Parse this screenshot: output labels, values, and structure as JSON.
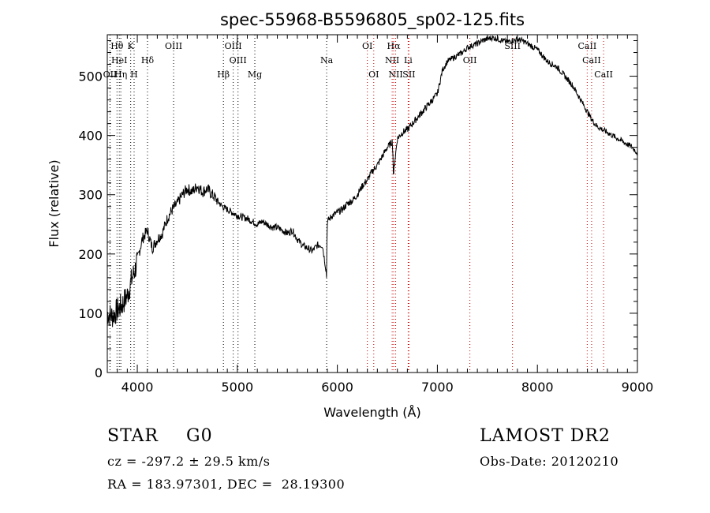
{
  "chart_data": {
    "type": "line",
    "title": "spec-55968-B5596805_sp02-125.fits",
    "xlabel": "Wavelength (Å)",
    "ylabel": "Flux (relative)",
    "xlim": [
      3700,
      9000
    ],
    "ylim": [
      0,
      570
    ],
    "x_ticks": [
      4000,
      5000,
      6000,
      7000,
      8000,
      9000
    ],
    "y_ticks": [
      0,
      100,
      200,
      300,
      400,
      500
    ],
    "x_tick_labels": [
      "4000",
      "5000",
      "6000",
      "7000",
      "8000",
      "9000"
    ],
    "y_tick_labels": [
      "0",
      "100",
      "200",
      "300",
      "400",
      "500"
    ],
    "series": [
      {
        "x": [
          3700,
          3750,
          3800,
          3850,
          3900,
          3950,
          3980,
          4000,
          4050,
          4100,
          4150,
          4200,
          4250,
          4300,
          4350,
          4400,
          4450,
          4500,
          4550,
          4600,
          4650,
          4700,
          4750,
          4800,
          4850,
          4900,
          4950,
          5000,
          5050,
          5100,
          5150,
          5200,
          5250,
          5300,
          5350,
          5400,
          5450,
          5500,
          5550,
          5600,
          5650,
          5700,
          5750,
          5800,
          5850,
          5890,
          5900,
          5950,
          6000,
          6050,
          6100,
          6150,
          6200,
          6250,
          6300,
          6350,
          6400,
          6450,
          6500,
          6550,
          6563,
          6600,
          6650,
          6700,
          6750,
          6800,
          6850,
          6900,
          6950,
          7000,
          7050,
          7100,
          7150,
          7200,
          7250,
          7300,
          7350,
          7400,
          7450,
          7500,
          7550,
          7600,
          7650,
          7700,
          7750,
          7800,
          7850,
          7900,
          7950,
          8000,
          8050,
          8100,
          8150,
          8200,
          8250,
          8300,
          8350,
          8400,
          8450,
          8500,
          8550,
          8600,
          8650,
          8700,
          8750,
          8800,
          8850,
          8900,
          8950,
          9000
        ],
        "values": [
          100,
          95,
          105,
          115,
          130,
          160,
          175,
          190,
          225,
          240,
          210,
          225,
          235,
          260,
          275,
          285,
          300,
          310,
          305,
          315,
          305,
          310,
          300,
          290,
          280,
          275,
          270,
          265,
          262,
          260,
          255,
          250,
          255,
          250,
          245,
          245,
          240,
          235,
          240,
          225,
          215,
          210,
          205,
          215,
          215,
          170,
          255,
          265,
          270,
          275,
          285,
          290,
          300,
          315,
          325,
          340,
          350,
          365,
          380,
          390,
          340,
          395,
          405,
          410,
          420,
          430,
          440,
          450,
          460,
          470,
          510,
          525,
          530,
          535,
          540,
          548,
          552,
          555,
          560,
          563,
          565,
          563,
          560,
          558,
          560,
          562,
          560,
          555,
          550,
          545,
          535,
          525,
          520,
          515,
          505,
          495,
          485,
          470,
          455,
          440,
          425,
          415,
          410,
          405,
          400,
          395,
          390,
          385,
          380,
          370
        ]
      }
    ],
    "line_markers": [
      {
        "label": "Hθ",
        "x": 3797,
        "row": 1,
        "color": "#000000"
      },
      {
        "label": "K",
        "x": 3934,
        "row": 1,
        "color": "#000000"
      },
      {
        "label": "HeI",
        "x": 3820,
        "row": 2,
        "color": "#000000"
      },
      {
        "label": "Hδ",
        "x": 4102,
        "row": 2,
        "color": "#000000"
      },
      {
        "label": "OII",
        "x": 3727,
        "row": 3,
        "color": "#000000"
      },
      {
        "label": "Hη",
        "x": 3835,
        "row": 3,
        "color": "#000000"
      },
      {
        "label": "H",
        "x": 3968,
        "row": 3,
        "color": "#000000"
      },
      {
        "label": "OIII",
        "x": 4363,
        "row": 1,
        "color": "#000000"
      },
      {
        "label": "OIII",
        "x": 4959,
        "row": 1,
        "color": "#000000"
      },
      {
        "label": "OIII",
        "x": 5007,
        "row": 2,
        "color": "#000000"
      },
      {
        "label": "Hβ",
        "x": 4861,
        "row": 3,
        "color": "#000000"
      },
      {
        "label": "Mg",
        "x": 5175,
        "row": 3,
        "color": "#000000"
      },
      {
        "label": "Na",
        "x": 5893,
        "row": 2,
        "color": "#000000"
      },
      {
        "label": "OI",
        "x": 6300,
        "row": 1,
        "color": "#c00000"
      },
      {
        "label": "OI",
        "x": 6364,
        "row": 3,
        "color": "#c00000"
      },
      {
        "label": "Hα",
        "x": 6563,
        "row": 1,
        "color": "#c00000"
      },
      {
        "label": "NII",
        "x": 6548,
        "row": 2,
        "color": "#c00000"
      },
      {
        "label": "Li",
        "x": 6708,
        "row": 2,
        "color": "#c00000"
      },
      {
        "label": "NII",
        "x": 6583,
        "row": 3,
        "color": "#c00000"
      },
      {
        "label": "SII",
        "x": 6716,
        "row": 3,
        "color": "#c00000"
      },
      {
        "label": "OII",
        "x": 7325,
        "row": 2,
        "color": "#c00000"
      },
      {
        "label": "SIII",
        "x": 7751,
        "row": 1,
        "color": "#c00000"
      },
      {
        "label": "CaII",
        "x": 8498,
        "row": 1,
        "color": "#c00000"
      },
      {
        "label": "CaII",
        "x": 8542,
        "row": 2,
        "color": "#c00000"
      },
      {
        "label": "CaII",
        "x": 8662,
        "row": 3,
        "color": "#c00000"
      }
    ]
  },
  "info": {
    "object_class": "STAR",
    "subclass": "G0",
    "survey": "LAMOST DR2",
    "redshift": "cz = -297.2 ± 29.5 km/s",
    "obs_date": "Obs-Date: 20120210",
    "coords": "RA = 183.97301, DEC =  28.19300"
  }
}
